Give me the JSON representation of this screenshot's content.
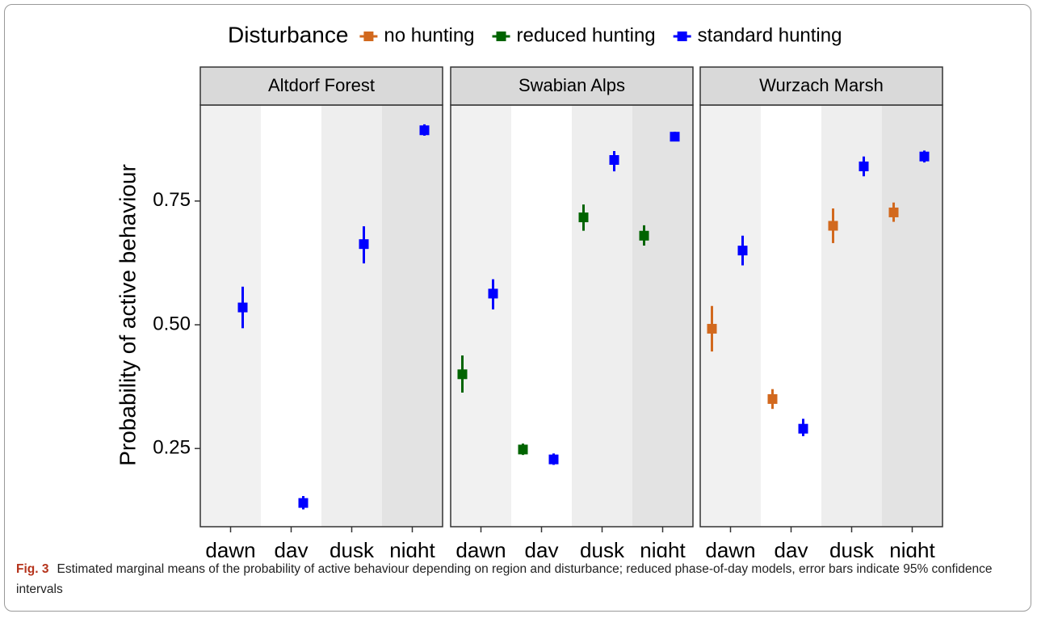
{
  "chart_data": {
    "type": "pointrange",
    "legend": {
      "title": "Disturbance",
      "series": [
        {
          "name": "no hunting",
          "color": "#d2691e"
        },
        {
          "name": "reduced hunting",
          "color": "#006400"
        },
        {
          "name": "standard hunting",
          "color": "#0000ff"
        }
      ]
    },
    "y_label": "Probability of active behaviour",
    "categories": [
      "dawn",
      "day",
      "dusk",
      "night"
    ],
    "band_colors": [
      "#f1f1f1",
      "#ffffff",
      "#eeeeee",
      "#e3e3e3"
    ],
    "ylim": [
      0.092,
      0.944
    ],
    "yticks": [
      0.25,
      {
        "value": 0.5,
        "label": "0.50"
      },
      0.75
    ],
    "grid": false,
    "panels": [
      {
        "title": "Altdorf Forest",
        "series": [
          {
            "name": "standard hunting",
            "values": [
              0.535,
              0.14,
              0.663,
              0.893
            ],
            "lower": [
              0.493,
              0.127,
              0.624,
              0.882
            ],
            "upper": [
              0.577,
              0.154,
              0.699,
              0.905
            ]
          }
        ]
      },
      {
        "title": "Swabian Alps",
        "series": [
          {
            "name": "reduced hunting",
            "values": [
              0.4,
              0.248,
              0.717,
              0.68
            ],
            "lower": [
              0.363,
              0.237,
              0.69,
              0.66
            ],
            "upper": [
              0.438,
              0.26,
              0.743,
              0.701
            ]
          },
          {
            "name": "standard hunting",
            "values": [
              0.563,
              0.228,
              0.833,
              0.88
            ],
            "lower": [
              0.531,
              0.217,
              0.81,
              0.872
            ],
            "upper": [
              0.592,
              0.24,
              0.851,
              0.89
            ]
          }
        ]
      },
      {
        "title": "Wurzach Marsh",
        "series": [
          {
            "name": "no hunting",
            "values": [
              0.492,
              0.35,
              0.7,
              0.727
            ],
            "lower": [
              0.446,
              0.33,
              0.665,
              0.708
            ],
            "upper": [
              0.538,
              0.37,
              0.735,
              0.747
            ]
          },
          {
            "name": "standard hunting",
            "values": [
              0.65,
              0.29,
              0.82,
              0.84
            ],
            "lower": [
              0.62,
              0.275,
              0.8,
              0.828
            ],
            "upper": [
              0.68,
              0.31,
              0.84,
              0.852
            ]
          }
        ]
      }
    ]
  },
  "caption": {
    "label": "Fig. 3",
    "text": "Estimated marginal means of the probability of active behaviour depending on region and disturbance; reduced phase-of-day models, error bars indicate 95% confidence intervals"
  }
}
